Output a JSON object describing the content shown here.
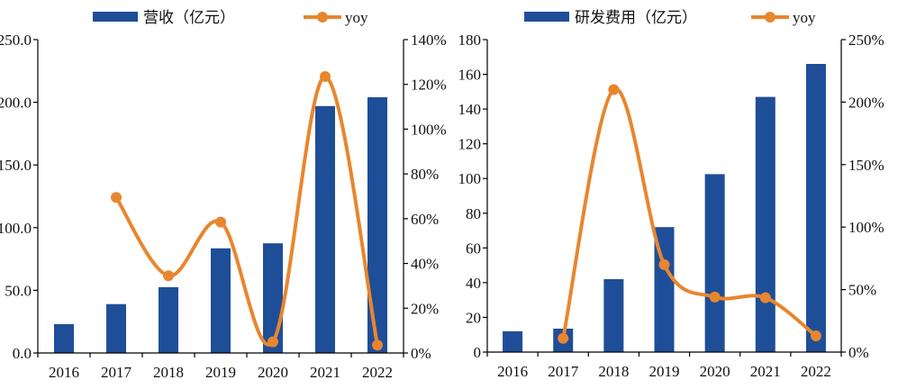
{
  "colors": {
    "bar": "#1F4E98",
    "line": "#E8862E",
    "axis": "#000000",
    "text": "#111111"
  },
  "chart_data": [
    {
      "type": "bar",
      "title": "",
      "categories": [
        "2016",
        "2017",
        "2018",
        "2019",
        "2020",
        "2021",
        "2022"
      ],
      "xlabel": "",
      "ylabel": "",
      "y_left": {
        "min": 0,
        "max": 250,
        "step": 50,
        "ticks": [
          "0.0",
          "50.0",
          "100.0",
          "150.0",
          "200.0",
          "250.0"
        ]
      },
      "y_right": {
        "min": 0,
        "max": 140,
        "step": 20,
        "ticks": [
          "0%",
          "20%",
          "40%",
          "60%",
          "80%",
          "100%",
          "120%",
          "140%"
        ]
      },
      "grid": false,
      "legend_position": "top",
      "series": [
        {
          "name": "营收（亿元）",
          "kind": "bar",
          "axis": "left",
          "values": [
            23,
            39,
            52.5,
            83.5,
            87.5,
            197,
            204
          ]
        },
        {
          "name": "yoy",
          "kind": "line",
          "axis": "right",
          "smooth": true,
          "values": [
            null,
            69.5,
            34.5,
            58.5,
            5,
            123.5,
            3.5
          ]
        }
      ]
    },
    {
      "type": "bar",
      "title": "",
      "categories": [
        "2016",
        "2017",
        "2018",
        "2019",
        "2020",
        "2021",
        "2022"
      ],
      "xlabel": "",
      "ylabel": "",
      "y_left": {
        "min": 0,
        "max": 180,
        "step": 20,
        "ticks": [
          "0",
          "20",
          "40",
          "60",
          "80",
          "100",
          "120",
          "140",
          "160",
          "180"
        ]
      },
      "y_right": {
        "min": 0,
        "max": 250,
        "step": 50,
        "ticks": [
          "0%",
          "50%",
          "100%",
          "150%",
          "200%",
          "250%"
        ]
      },
      "grid": false,
      "legend_position": "top",
      "series": [
        {
          "name": "研发费用（亿元）",
          "kind": "bar",
          "axis": "left",
          "values": [
            12,
            13.5,
            42,
            72,
            102.5,
            147,
            166
          ]
        },
        {
          "name": "yoy",
          "kind": "line",
          "axis": "right",
          "smooth": true,
          "values": [
            null,
            11,
            210,
            70,
            44,
            43.5,
            13
          ]
        }
      ]
    }
  ]
}
